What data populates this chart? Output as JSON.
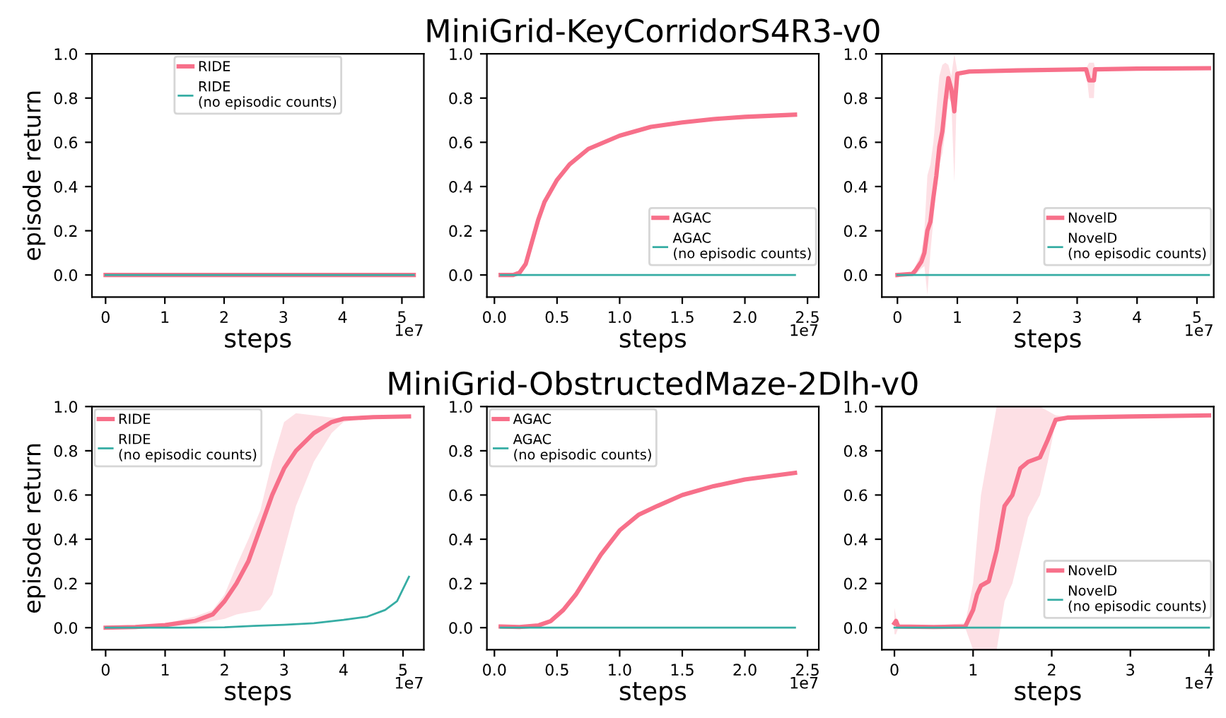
{
  "chart_data": [
    {
      "type": "line",
      "ylabel": "episode return",
      "xlabel": "steps",
      "annotations": [
        "1e7"
      ],
      "xlim": [
        -0.23,
        5.37
      ],
      "xticks": [
        0,
        1,
        2,
        3,
        4,
        5
      ],
      "ylim": [
        -0.1,
        1.0
      ],
      "yticks": [
        {
          "value": 0,
          "label": "0.0"
        },
        {
          "value": 0.2,
          "label": "0.2"
        },
        {
          "value": 0.4,
          "label": "0.4"
        },
        {
          "value": 0.6,
          "label": "0.6"
        },
        {
          "value": 0.8,
          "label": "0.8"
        },
        {
          "value": 1.0,
          "label": "1.0"
        }
      ],
      "grid": false,
      "legend": "top",
      "marker": "none",
      "line_style": "solid",
      "series": [
        {
          "name": "RIDE",
          "color": "#f7708a",
          "x": [
            0,
            5.2
          ],
          "values": [
            0,
            0
          ]
        },
        {
          "name": "RIDE\n(no episodic counts)",
          "color": "#36ada4",
          "x": [
            0,
            5.2
          ],
          "values": [
            0,
            0
          ]
        }
      ]
    },
    {
      "type": "line",
      "title": "MiniGrid-KeyCorridorS4R3-v0",
      "xlabel": "steps",
      "annotations": [
        "1e7"
      ],
      "xlim": [
        -0.06,
        2.59
      ],
      "xticks": [
        {
          "value": 0,
          "label": "0.0"
        },
        0.5,
        {
          "value": 1,
          "label": "1.0"
        },
        1.5,
        {
          "value": 2,
          "label": "2.0"
        },
        2.5
      ],
      "ylim": [
        -0.1,
        1.0
      ],
      "yticks": [
        {
          "value": 0,
          "label": "0.0"
        },
        {
          "value": 0.2,
          "label": "0.2"
        },
        {
          "value": 0.4,
          "label": "0.4"
        },
        {
          "value": 0.6,
          "label": "0.6"
        },
        {
          "value": 0.8,
          "label": "0.8"
        },
        {
          "value": 1.0,
          "label": "1.0"
        }
      ],
      "grid": false,
      "legend": "bottom right",
      "marker": "none",
      "line_style": "solid",
      "series": [
        {
          "name": "AGAC",
          "color": "#f7708a",
          "x": [
            0.05,
            0.15,
            0.2,
            0.25,
            0.3,
            0.35,
            0.4,
            0.5,
            0.6,
            0.75,
            1.0,
            1.25,
            1.5,
            1.75,
            2.0,
            2.4
          ],
          "values": [
            0,
            0,
            0.01,
            0.05,
            0.15,
            0.25,
            0.33,
            0.43,
            0.5,
            0.57,
            0.63,
            0.67,
            0.69,
            0.705,
            0.715,
            0.725
          ]
        },
        {
          "name": "AGAC\n(no episodic counts)",
          "color": "#36ada4",
          "x": [
            0.05,
            2.4
          ],
          "values": [
            0,
            0
          ]
        }
      ]
    },
    {
      "type": "line",
      "xlabel": "steps",
      "annotations": [
        "1e7"
      ],
      "xlim": [
        -0.26,
        5.28
      ],
      "xticks": [
        0,
        1,
        2,
        3,
        4,
        5
      ],
      "ylim": [
        -0.1,
        1.0
      ],
      "yticks": [
        {
          "value": 0,
          "label": "0.0"
        },
        {
          "value": 0.2,
          "label": "0.2"
        },
        {
          "value": 0.4,
          "label": "0.4"
        },
        {
          "value": 0.6,
          "label": "0.6"
        },
        {
          "value": 0.8,
          "label": "0.8"
        },
        {
          "value": 1.0,
          "label": "1.0"
        }
      ],
      "grid": false,
      "legend": "bottom right",
      "marker": "none",
      "line_style": "solid",
      "series": [
        {
          "name": "NovelD",
          "color": "#f7708a",
          "x": [
            0,
            0.25,
            0.3,
            0.4,
            0.45,
            0.5,
            0.55,
            0.6,
            0.65,
            0.7,
            0.75,
            0.8,
            0.85,
            0.9,
            0.95,
            1.0,
            1.2,
            2,
            3.15,
            3.2,
            3.28,
            3.3,
            4,
            5.2
          ],
          "values": [
            0,
            0.005,
            0.02,
            0.06,
            0.1,
            0.2,
            0.24,
            0.35,
            0.45,
            0.58,
            0.65,
            0.78,
            0.89,
            0.84,
            0.74,
            0.91,
            0.92,
            0.925,
            0.93,
            0.88,
            0.88,
            0.93,
            0.933,
            0.935
          ],
          "lower": [
            0,
            0,
            0,
            0.03,
            0.04,
            -0.09,
            0.1,
            0.25,
            0.4,
            0.5,
            0.55,
            0.65,
            0.8,
            0.78,
            0.42,
            0.9,
            0.91,
            0.92,
            0.925,
            0.8,
            0.8,
            0.925,
            0.93,
            0.93
          ],
          "upper": [
            0,
            0.01,
            0.04,
            0.1,
            0.2,
            0.45,
            0.5,
            0.6,
            0.75,
            0.9,
            0.95,
            0.96,
            0.95,
            0.9,
            1.0,
            0.92,
            0.93,
            0.93,
            0.935,
            0.96,
            0.96,
            0.935,
            0.937,
            0.94
          ]
        },
        {
          "name": "NovelD\n(no episodic counts)",
          "color": "#36ada4",
          "x": [
            0,
            5.2
          ],
          "values": [
            0,
            0
          ]
        }
      ]
    },
    {
      "type": "line",
      "ylabel": "episode return",
      "xlabel": "steps",
      "annotations": [
        "1e7"
      ],
      "xlim": [
        -0.23,
        5.35
      ],
      "xticks": [
        0,
        1,
        2,
        3,
        4,
        5
      ],
      "ylim": [
        -0.1,
        1.0
      ],
      "yticks": [
        {
          "value": 0,
          "label": "0.0"
        },
        {
          "value": 0.2,
          "label": "0.2"
        },
        {
          "value": 0.4,
          "label": "0.4"
        },
        {
          "value": 0.6,
          "label": "0.6"
        },
        {
          "value": 0.8,
          "label": "0.8"
        },
        {
          "value": 1.0,
          "label": "1.0"
        }
      ],
      "grid": false,
      "legend": "top left",
      "marker": "none",
      "line_style": "solid",
      "series": [
        {
          "name": "RIDE",
          "color": "#f7708a",
          "x": [
            0,
            0.5,
            1,
            1.5,
            1.8,
            2,
            2.2,
            2.4,
            2.6,
            2.8,
            3,
            3.2,
            3.5,
            3.8,
            4,
            4.5,
            5.1
          ],
          "values": [
            0,
            0.003,
            0.012,
            0.03,
            0.06,
            0.12,
            0.2,
            0.3,
            0.45,
            0.6,
            0.72,
            0.8,
            0.88,
            0.93,
            0.945,
            0.952,
            0.955
          ],
          "lower": [
            0,
            0,
            0.005,
            0.015,
            0.03,
            0.04,
            0.06,
            0.07,
            0.08,
            0.15,
            0.35,
            0.55,
            0.75,
            0.88,
            0.93,
            0.95,
            0.955
          ],
          "upper": [
            0.01,
            0.01,
            0.02,
            0.05,
            0.08,
            0.15,
            0.28,
            0.4,
            0.53,
            0.75,
            0.93,
            0.97,
            0.96,
            0.95,
            0.95,
            0.955,
            0.957
          ]
        },
        {
          "name": "RIDE\n(no episodic counts)",
          "color": "#36ada4",
          "x": [
            0,
            1,
            2,
            2.5,
            3,
            3.5,
            4,
            4.4,
            4.7,
            4.9,
            5.1
          ],
          "values": [
            0,
            0,
            0.002,
            0.008,
            0.013,
            0.02,
            0.035,
            0.05,
            0.08,
            0.12,
            0.23
          ]
        }
      ]
    },
    {
      "type": "line",
      "title": "MiniGrid-ObstructedMaze-2Dlh-v0",
      "xlabel": "steps",
      "annotations": [
        "1e7"
      ],
      "xlim": [
        -0.06,
        2.59
      ],
      "xticks": [
        {
          "value": 0,
          "label": "0.0"
        },
        0.5,
        {
          "value": 1,
          "label": "1.0"
        },
        1.5,
        {
          "value": 2,
          "label": "2.0"
        },
        2.5
      ],
      "ylim": [
        -0.1,
        1.0
      ],
      "yticks": [
        {
          "value": 0,
          "label": "0.0"
        },
        {
          "value": 0.2,
          "label": "0.2"
        },
        {
          "value": 0.4,
          "label": "0.4"
        },
        {
          "value": 0.6,
          "label": "0.6"
        },
        {
          "value": 0.8,
          "label": "0.8"
        },
        {
          "value": 1.0,
          "label": "1.0"
        }
      ],
      "grid": false,
      "legend": "top left",
      "marker": "none",
      "line_style": "solid",
      "series": [
        {
          "name": "AGAC",
          "color": "#f7708a",
          "x": [
            0.05,
            0.2,
            0.35,
            0.45,
            0.55,
            0.65,
            0.75,
            0.85,
            1.0,
            1.15,
            1.3,
            1.5,
            1.75,
            2.0,
            2.4
          ],
          "values": [
            0.005,
            0.003,
            0.01,
            0.03,
            0.08,
            0.15,
            0.24,
            0.33,
            0.44,
            0.51,
            0.55,
            0.6,
            0.64,
            0.67,
            0.7
          ]
        },
        {
          "name": "AGAC\n(no episodic counts)",
          "color": "#36ada4",
          "x": [
            0.05,
            2.4
          ],
          "values": [
            0,
            0
          ]
        }
      ]
    },
    {
      "type": "line",
      "xlabel": "steps",
      "annotations": [
        "1e7"
      ],
      "xlim": [
        -0.16,
        4.06
      ],
      "xticks": [
        0,
        1,
        2,
        3,
        4
      ],
      "ylim": [
        -0.1,
        1.0
      ],
      "yticks": [
        {
          "value": 0,
          "label": "0.0"
        },
        {
          "value": 0.2,
          "label": "0.2"
        },
        {
          "value": 0.4,
          "label": "0.4"
        },
        {
          "value": 0.6,
          "label": "0.6"
        },
        {
          "value": 0.8,
          "label": "0.8"
        },
        {
          "value": 1.0,
          "label": "1.0"
        }
      ],
      "grid": false,
      "legend": "bottom right",
      "marker": "none",
      "line_style": "solid",
      "series": [
        {
          "name": "NovelD",
          "color": "#f7708a",
          "x": [
            0,
            0.02,
            0.05,
            0.5,
            0.9,
            1.0,
            1.05,
            1.1,
            1.2,
            1.3,
            1.4,
            1.5,
            1.6,
            1.7,
            1.85,
            1.95,
            2.05,
            2.2,
            3,
            4
          ],
          "values": [
            0.02,
            0.03,
            0.005,
            0.003,
            0.005,
            0.08,
            0.15,
            0.19,
            0.21,
            0.35,
            0.55,
            0.6,
            0.72,
            0.75,
            0.77,
            0.85,
            0.94,
            0.95,
            0.955,
            0.96
          ],
          "lower": [
            -0.03,
            -0.03,
            0,
            0,
            0,
            -0.1,
            -0.1,
            -0.1,
            -0.1,
            -0.1,
            0.12,
            0.2,
            0.35,
            0.5,
            0.6,
            0.75,
            0.93,
            0.945,
            0.95,
            0.955
          ],
          "upper": [
            0.09,
            0.05,
            0.01,
            0.01,
            0.02,
            0.2,
            0.4,
            0.6,
            0.8,
            1.0,
            1.0,
            1.0,
            1.0,
            1.0,
            1.0,
            0.98,
            0.96,
            0.955,
            0.96,
            0.965
          ]
        },
        {
          "name": "NovelD\n(no episodic counts)",
          "color": "#36ada4",
          "x": [
            0,
            4
          ],
          "values": [
            0,
            0
          ]
        }
      ]
    }
  ]
}
